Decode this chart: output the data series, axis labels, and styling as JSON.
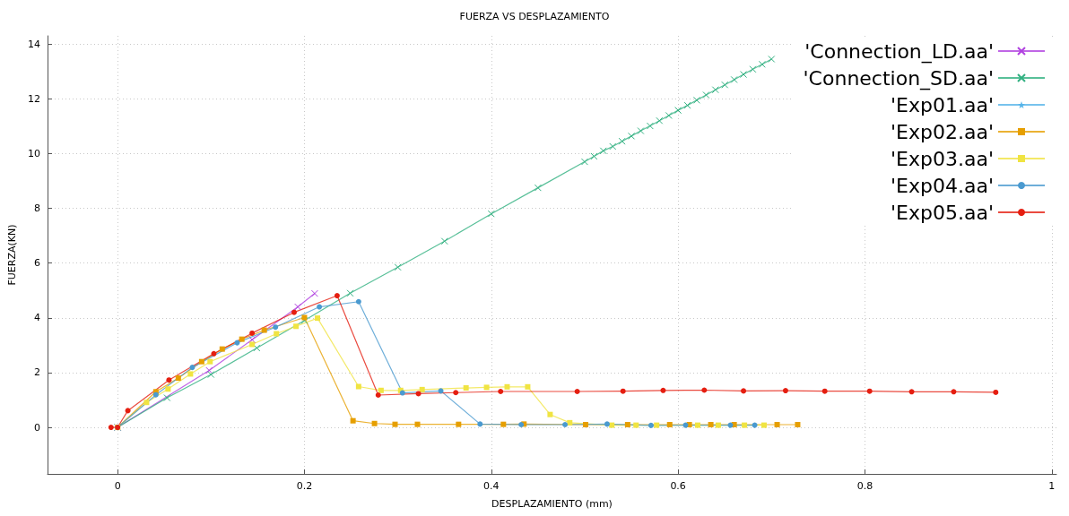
{
  "chart_data": {
    "type": "line",
    "title": "FUERZA VS DESPLAZAMIENTO",
    "xlabel": "DESPLAZAMIENTO (mm)",
    "ylabel": "FUERZA(KN)",
    "xlim": [
      -0.075,
      1.005
    ],
    "ylim": [
      -1.7,
      14.3
    ],
    "xticks": [
      0,
      0.2,
      0.4,
      0.6,
      0.8,
      1
    ],
    "yticks": [
      0,
      2,
      4,
      6,
      8,
      10,
      12,
      14
    ],
    "grid": true,
    "legend": "top right",
    "series": [
      {
        "name": "'Connection_LD.aa'",
        "color": "#b040e0",
        "marker": "cross",
        "x": [
          0,
          0.098,
          0.144,
          0.193,
          0.211
        ],
        "values": [
          0,
          2.08,
          3.2,
          4.4,
          4.89
        ]
      },
      {
        "name": "'Connection_SD.aa'",
        "color": "#30b080",
        "marker": "cross",
        "x": [
          0,
          0.053,
          0.1,
          0.149,
          0.2,
          0.249,
          0.3,
          0.35,
          0.4,
          0.45,
          0.5,
          0.51,
          0.52,
          0.53,
          0.54,
          0.55,
          0.56,
          0.57,
          0.58,
          0.59,
          0.6,
          0.61,
          0.62,
          0.63,
          0.64,
          0.65,
          0.66,
          0.67,
          0.68,
          0.69,
          0.7
        ],
        "values": [
          0,
          1.08,
          1.93,
          2.9,
          3.9,
          4.9,
          5.85,
          6.8,
          7.8,
          8.75,
          9.7,
          9.9,
          10.1,
          10.26,
          10.45,
          10.64,
          10.83,
          11.01,
          11.2,
          11.39,
          11.58,
          11.76,
          11.95,
          12.14,
          12.33,
          12.51,
          12.7,
          12.89,
          13.08,
          13.26,
          13.45
        ]
      },
      {
        "name": "'Exp01.aa'",
        "color": "#56b4e9",
        "marker": "star"
      },
      {
        "name": "'Exp02.aa'",
        "color": "#e69f00",
        "marker": "square",
        "x": [
          0,
          0.041,
          0.065,
          0.09,
          0.112,
          0.133,
          0.157,
          0.2,
          0.252,
          0.275,
          0.297,
          0.321,
          0.365,
          0.413,
          0.435,
          0.501,
          0.546,
          0.591,
          0.612,
          0.635,
          0.66,
          0.706,
          0.728
        ],
        "values": [
          0,
          1.3,
          1.8,
          2.4,
          2.86,
          3.22,
          3.55,
          4.01,
          0.24,
          0.14,
          0.11,
          0.11,
          0.11,
          0.11,
          0.12,
          0.1,
          0.1,
          0.1,
          0.1,
          0.1,
          0.1,
          0.1,
          0.1
        ]
      },
      {
        "name": "'Exp03.aa'",
        "color": "#f0e442",
        "marker": "square",
        "x": [
          0,
          0.031,
          0.054,
          0.078,
          0.099,
          0.144,
          0.17,
          0.191,
          0.214,
          0.258,
          0.282,
          0.303,
          0.326,
          0.373,
          0.395,
          0.417,
          0.439,
          0.463,
          0.484,
          0.529,
          0.555,
          0.577,
          0.621,
          0.643,
          0.671,
          0.692
        ],
        "values": [
          0,
          0.91,
          1.4,
          1.95,
          2.4,
          3.03,
          3.42,
          3.69,
          3.99,
          1.49,
          1.35,
          1.35,
          1.38,
          1.44,
          1.46,
          1.48,
          1.48,
          0.47,
          0.17,
          0.08,
          0.08,
          0.08,
          0.08,
          0.08,
          0.08,
          0.08
        ]
      },
      {
        "name": "'Exp04.aa'",
        "color": "#4a9ad0",
        "marker": "circle",
        "x": [
          0,
          0.041,
          0.08,
          0.128,
          0.169,
          0.216,
          0.258,
          0.305,
          0.346,
          0.388,
          0.432,
          0.479,
          0.524,
          0.571,
          0.608,
          0.656,
          0.682
        ],
        "values": [
          0,
          1.19,
          2.19,
          3.09,
          3.66,
          4.4,
          4.59,
          1.26,
          1.33,
          0.12,
          0.1,
          0.1,
          0.12,
          0.07,
          0.08,
          0.08,
          0.08
        ]
      },
      {
        "name": "'Exp05.aa'",
        "color": "#e51e10",
        "marker": "circle",
        "x": [
          -0.007,
          0,
          0.011,
          0.055,
          0.103,
          0.144,
          0.189,
          0.235,
          0.279,
          0.322,
          0.362,
          0.41,
          0.492,
          0.541,
          0.584,
          0.628,
          0.67,
          0.715,
          0.757,
          0.805,
          0.85,
          0.895,
          0.94
        ],
        "values": [
          0,
          0,
          0.61,
          1.73,
          2.69,
          3.44,
          4.2,
          4.81,
          1.18,
          1.23,
          1.27,
          1.31,
          1.31,
          1.32,
          1.35,
          1.36,
          1.33,
          1.34,
          1.32,
          1.32,
          1.3,
          1.3,
          1.28
        ]
      }
    ]
  }
}
